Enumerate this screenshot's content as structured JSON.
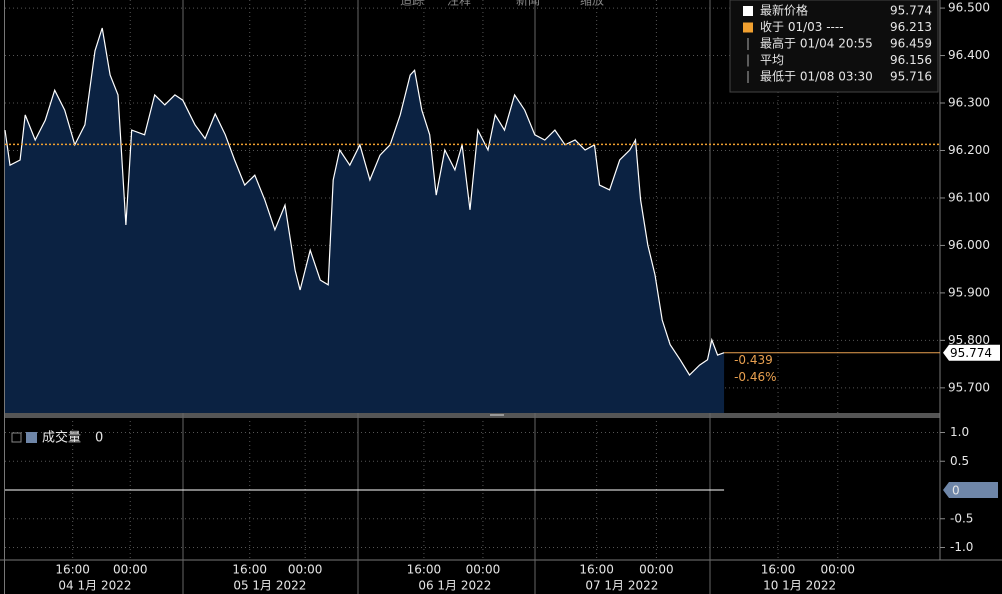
{
  "toolbar": [
    "追踪",
    "注释",
    "新闻",
    "缩放"
  ],
  "chart_data": [
    {
      "type": "area",
      "x": [
        0,
        0.7,
        2.1,
        2.8,
        4.2,
        5.6,
        6.9,
        8.3,
        9.7,
        11.1,
        12.5,
        13.5,
        14.6,
        15.7,
        16.8,
        17.6,
        19.4,
        20.8,
        22.2,
        23.6,
        24.7,
        26.4,
        27.8,
        29.2,
        30.6,
        31.9,
        33.3,
        34.7,
        36.1,
        37.5,
        38.9,
        40.3,
        41.0,
        42.4,
        43.8,
        44.9,
        45.6,
        46.5,
        47.9,
        49.3,
        50.7,
        52.1,
        53.5,
        54.9,
        56.3,
        56.9,
        57.9,
        59.0,
        59.9,
        61.1,
        62.5,
        63.5,
        64.6,
        65.7,
        67.1,
        68.1,
        69.4,
        70.8,
        72.2,
        73.6,
        75.0,
        76.4,
        77.8,
        79.2,
        80.6,
        81.9,
        82.6,
        84.0,
        85.4,
        86.8,
        87.6,
        88.3,
        89.3,
        90.3,
        91.3,
        92.4,
        93.8,
        95.1,
        96.5,
        97.6,
        98.2,
        99.0,
        99.9
      ],
      "values": [
        96.243,
        96.169,
        96.18,
        96.275,
        96.222,
        96.264,
        96.327,
        96.285,
        96.212,
        96.254,
        96.41,
        96.458,
        96.359,
        96.317,
        96.043,
        96.243,
        96.233,
        96.317,
        96.296,
        96.317,
        96.306,
        96.254,
        96.225,
        96.277,
        96.233,
        96.18,
        96.127,
        96.148,
        96.096,
        96.033,
        96.085,
        95.948,
        95.906,
        95.99,
        95.927,
        95.917,
        96.138,
        96.201,
        96.169,
        96.212,
        96.138,
        96.19,
        96.212,
        96.275,
        96.359,
        96.369,
        96.285,
        96.233,
        96.106,
        96.201,
        96.159,
        96.212,
        96.075,
        96.243,
        96.201,
        96.275,
        96.243,
        96.317,
        96.285,
        96.233,
        96.222,
        96.243,
        96.212,
        96.222,
        96.201,
        96.212,
        96.127,
        96.117,
        96.18,
        96.201,
        96.222,
        96.096,
        96.001,
        95.938,
        95.843,
        95.791,
        95.759,
        95.727,
        95.748,
        95.759,
        95.801,
        95.769,
        95.774
      ],
      "color": "#ffffff",
      "fill": "#0b2242",
      "xlim": [
        0,
        129.9
      ],
      "xticks": [
        {
          "value": 9.4,
          "label": "16:00"
        },
        {
          "value": 17.4,
          "label": "00:00"
        },
        {
          "value": 34,
          "label": "16:00"
        },
        {
          "value": 41.7,
          "label": "00:00"
        },
        {
          "value": 58.2,
          "label": "16:00"
        },
        {
          "value": 66.4,
          "label": "00:00"
        },
        {
          "value": 82.2,
          "label": "16:00"
        },
        {
          "value": 90.5,
          "label": "00:00"
        },
        {
          "value": 107.4,
          "label": "16:00"
        },
        {
          "value": 115.7,
          "label": "00:00"
        }
      ],
      "date_labels": [
        {
          "value": 12.5,
          "label": "04 1月 2022"
        },
        {
          "value": 36.8,
          "label": "05 1月 2022"
        },
        {
          "value": 62.5,
          "label": "06 1月 2022"
        },
        {
          "value": 85.7,
          "label": "07 1月 2022"
        },
        {
          "value": 110.4,
          "label": "10 1月 2022"
        }
      ],
      "ylim": [
        95.647,
        96.517
      ],
      "yticks": [
        {
          "value": 96.5,
          "label": "96.500"
        },
        {
          "value": 96.4,
          "label": "96.400"
        },
        {
          "value": 96.3,
          "label": "96.300"
        },
        {
          "value": 96.2,
          "label": "96.200"
        },
        {
          "value": 96.1,
          "label": "96.100"
        },
        {
          "value": 96.0,
          "label": "96.000"
        },
        {
          "value": 95.9,
          "label": "95.900"
        },
        {
          "value": 95.8,
          "label": "95.800"
        },
        {
          "value": 95.7,
          "label": "95.700"
        }
      ],
      "grid": true,
      "legend": [
        {
          "label": "最新价格",
          "value": 95.774,
          "color": "#ffffff"
        },
        {
          "label": "收于 01/03 ----",
          "value": 96.213,
          "color": "#f0a030",
          "line": "dotted"
        },
        {
          "label": "最高于 01/04 20:55",
          "value": 96.459,
          "color": "#aaaaaa"
        },
        {
          "label": "平均",
          "value": 96.156,
          "color": "#aaaaaa"
        },
        {
          "label": "最低于 01/08 03:30",
          "value": 95.716,
          "color": "#aaaaaa"
        }
      ],
      "last_color": "#e8a050",
      "annotations": [
        "-0.439",
        "-0.46%"
      ]
    },
    {
      "type": "line",
      "name": "成交量",
      "value": 0,
      "color": "#ffffff",
      "box_color": "#6f86a8",
      "ylim": [
        -1.2,
        1.2
      ],
      "yticks": [
        {
          "value": 1,
          "label": "1.0"
        },
        0.5,
        -0.5,
        {
          "value": -1,
          "label": "-1.0"
        }
      ],
      "grid": true
    }
  ]
}
